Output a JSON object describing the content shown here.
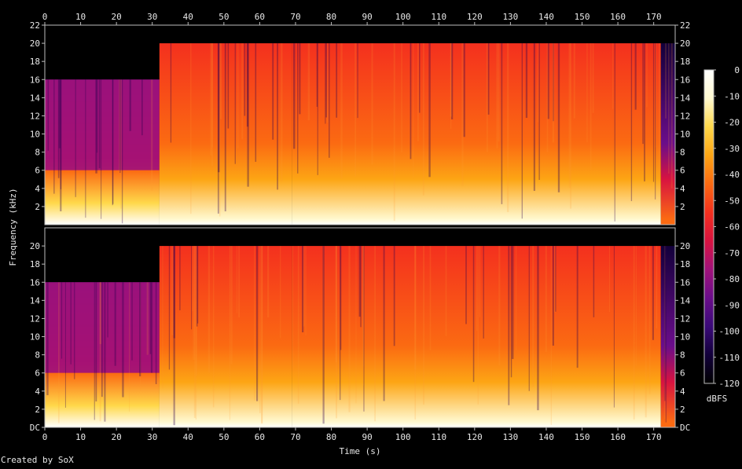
{
  "chart_data": {
    "type": "heatmap",
    "title": "",
    "xlabel": "Time (s)",
    "ylabel": "Frequency (kHz)",
    "colorbar_label": "dBFS",
    "credit": "Created by SoX",
    "x_range": [
      0,
      176
    ],
    "y_range_khz": [
      0,
      22
    ],
    "x_ticks": [
      "0",
      "10",
      "20",
      "30",
      "40",
      "50",
      "60",
      "70",
      "80",
      "90",
      "100",
      "110",
      "120",
      "130",
      "140",
      "150",
      "160",
      "170"
    ],
    "y_ticks_left_top": [
      "2",
      "4",
      "6",
      "8",
      "10",
      "12",
      "14",
      "16",
      "18",
      "20",
      "22"
    ],
    "y_ticks_left_bottom": [
      "DC",
      "2",
      "4",
      "6",
      "8",
      "10",
      "12",
      "14",
      "16",
      "18",
      "20"
    ],
    "y_ticks_right_top": [
      "2",
      "4",
      "6",
      "8",
      "10",
      "12",
      "14",
      "16",
      "18",
      "20",
      "22"
    ],
    "y_ticks_right_bottom": [
      "DC",
      "2",
      "4",
      "6",
      "8",
      "10",
      "12",
      "14",
      "16",
      "18",
      "20"
    ],
    "colorbar_ticks": [
      "0",
      "-10",
      "-20",
      "-30",
      "-40",
      "-50",
      "-60",
      "-70",
      "-80",
      "-90",
      "-100",
      "-110",
      "-120"
    ],
    "colorbar_range_dbfs": [
      -120,
      0
    ],
    "channels": [
      {
        "segments": [
          {
            "t": [
              0,
              32
            ],
            "cutoff_khz": 16,
            "upper_level_dbfs": -90,
            "band_khz": [
              6,
              16
            ],
            "band_level_dbfs": -75,
            "low_level_dbfs": -35
          },
          {
            "t": [
              32,
              69
            ],
            "cutoff_khz": 20,
            "upper_level_dbfs": -60,
            "low_level_dbfs": -35
          },
          {
            "t": [
              69,
              172
            ],
            "cutoff_khz": 20,
            "upper_level_dbfs": -55,
            "low_level_dbfs": -35
          },
          {
            "t": [
              172,
              176
            ],
            "cutoff_khz": 20,
            "upper_level_dbfs": -105,
            "low_level_dbfs": -70
          }
        ]
      },
      {
        "segments": [
          {
            "t": [
              0,
              32
            ],
            "cutoff_khz": 16,
            "upper_level_dbfs": -90,
            "band_khz": [
              6,
              16
            ],
            "band_level_dbfs": -75,
            "low_level_dbfs": -35
          },
          {
            "t": [
              32,
              69
            ],
            "cutoff_khz": 20,
            "upper_level_dbfs": -60,
            "low_level_dbfs": -35
          },
          {
            "t": [
              69,
              172
            ],
            "cutoff_khz": 20,
            "upper_level_dbfs": -55,
            "low_level_dbfs": -35
          },
          {
            "t": [
              172,
              176
            ],
            "cutoff_khz": 20,
            "upper_level_dbfs": -105,
            "low_level_dbfs": -70
          }
        ]
      }
    ],
    "colormap": [
      "#000000",
      "#12003a",
      "#3a0a78",
      "#6a0d8a",
      "#a0127a",
      "#d81340",
      "#f4301e",
      "#fb6a12",
      "#fda514",
      "#ffd84a",
      "#fff9d0",
      "#ffffff"
    ]
  }
}
